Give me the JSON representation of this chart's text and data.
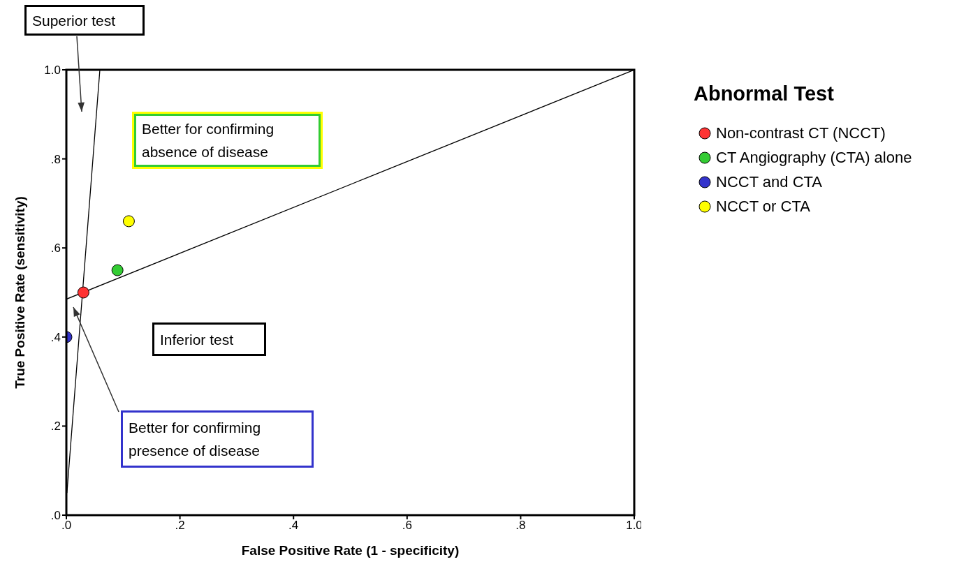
{
  "chart_data": {
    "type": "scatter",
    "xlabel": "False Positive Rate (1 - specificity)",
    "ylabel": "True Positive Rate (sensitivity)",
    "legend_title": "Abnormal Test",
    "legend": "right",
    "marker": "circle",
    "xlim": [
      0,
      1
    ],
    "ylim": [
      0,
      1
    ],
    "xticks": [
      {
        "value": 0,
        "label": ".0"
      },
      {
        "value": 0.2,
        "label": ".2"
      },
      {
        "value": 0.4,
        "label": ".4"
      },
      {
        "value": 0.6,
        "label": ".6"
      },
      {
        "value": 0.8,
        "label": ".8"
      },
      {
        "value": 1,
        "label": "1.0"
      }
    ],
    "yticks": [
      {
        "value": 0,
        "label": ".0"
      },
      {
        "value": 0.2,
        "label": ".2"
      },
      {
        "value": 0.4,
        "label": ".4"
      },
      {
        "value": 0.6,
        "label": ".6"
      },
      {
        "value": 0.8,
        "label": ".8"
      },
      {
        "value": 1,
        "label": "1.0"
      }
    ],
    "series": [
      {
        "name": "Non-contrast CT (NCCT)",
        "color": "#ff3333",
        "x": [
          0.03
        ],
        "values": [
          0.5
        ]
      },
      {
        "name": "CT Angiography (CTA) alone",
        "color": "#33cc33",
        "x": [
          0.09
        ],
        "values": [
          0.55
        ]
      },
      {
        "name": "NCCT and CTA",
        "color": "#3333cc",
        "x": [
          0
        ],
        "values": [
          0.4
        ]
      },
      {
        "name": "NCCT or CTA",
        "color": "#ffff00",
        "x": [
          0.11
        ],
        "values": [
          0.66
        ]
      },
      {
        "type": "line",
        "color": "#000000",
        "marker": "none",
        "x": [
          0,
          1
        ],
        "values": [
          0.485,
          1
        ]
      },
      {
        "type": "line",
        "color": "#000000",
        "marker": "none",
        "x": [
          0.001,
          0.059
        ],
        "values": [
          0.05,
          1
        ]
      }
    ],
    "annotations": [
      "Superior test",
      "Better for confirming absence of disease",
      "Inferior test",
      "Better for confirming presence of disease"
    ]
  }
}
